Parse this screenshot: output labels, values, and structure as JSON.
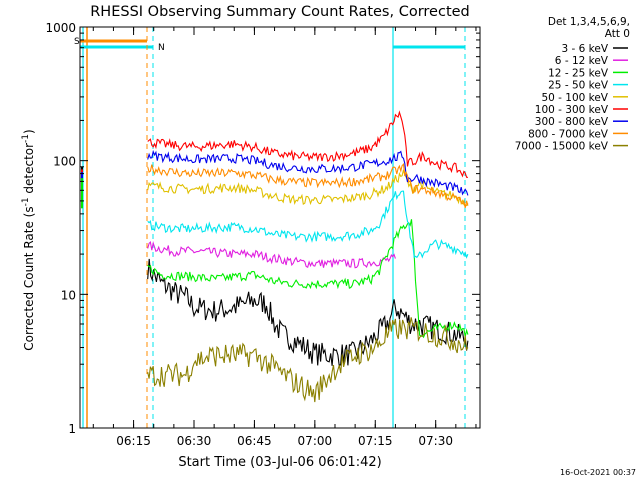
{
  "chart_data": {
    "type": "line",
    "title": "RHESSI Observing Summary Count Rates, Corrected",
    "xlabel": "Start Time (03-Jul-06 06:01:42)",
    "ylabel_main": "Corrected Count Rate (s",
    "ylabel_sup1": "-1",
    "ylabel_mid": " detector",
    "ylabel_sup2": "-1",
    "ylabel_end": ")",
    "y_scale": "log",
    "ylim": [
      1,
      1000
    ],
    "xlim": [
      "06:01:42",
      "07:41:00"
    ],
    "y_ticks": [
      "1",
      "10",
      "100",
      "1000"
    ],
    "x_ticks": [
      "06:15",
      "06:30",
      "06:45",
      "07:00",
      "07:15",
      "07:30"
    ],
    "legend_header": [
      "Det 1,3,4,5,6,9,",
      "Att 0"
    ],
    "legend_placement": "outside-right",
    "footer_date": "16-Oct-2021 00:37",
    "markers": [
      {
        "label": "S",
        "color": "#ff8c00"
      },
      {
        "label": "N",
        "color": "#00e5ee"
      }
    ],
    "series": [
      {
        "name": "3 - 6 keV",
        "color": "#000000",
        "x": [
          "06:18:30",
          "06:20",
          "06:22",
          "06:24",
          "06:26",
          "06:28",
          "06:30",
          "06:35",
          "06:40",
          "06:45",
          "06:48",
          "06:50",
          "06:52",
          "06:55",
          "07:00",
          "07:05",
          "07:10",
          "07:14",
          "07:18",
          "07:20",
          "07:22",
          "07:24",
          "07:26",
          "07:30",
          "07:35",
          "07:38"
        ],
        "y": [
          16,
          14,
          12,
          11,
          10,
          9.5,
          8,
          7.5,
          8,
          9,
          8.5,
          6,
          5,
          4.5,
          3.6,
          3.5,
          3.6,
          4.5,
          6,
          8,
          7,
          6,
          6,
          5.5,
          5,
          4.5
        ]
      },
      {
        "name": "6 - 12 keV",
        "color": "#e020e0",
        "x": [
          "06:18:30",
          "06:25",
          "06:30",
          "06:40",
          "06:45",
          "06:50",
          "06:55",
          "07:00",
          "07:05",
          "07:10",
          "07:15",
          "07:18",
          "07:20"
        ],
        "y": [
          23,
          21,
          21,
          20,
          20,
          18.5,
          17.5,
          17,
          17,
          17,
          17.5,
          18,
          18.5
        ]
      },
      {
        "name": "12 - 25 keV",
        "color": "#00ee00",
        "x": [
          "06:18:30",
          "06:22",
          "06:30",
          "06:35",
          "06:40",
          "06:45",
          "06:50",
          "06:55",
          "07:00",
          "07:05",
          "07:10",
          "07:14",
          "07:16",
          "07:18",
          "07:20",
          "07:22",
          "07:24",
          "07:26",
          "07:30",
          "07:35",
          "07:38"
        ],
        "y": [
          16,
          14,
          13.5,
          13,
          13.5,
          14,
          12.5,
          12,
          12,
          12,
          12,
          13,
          15,
          20,
          26,
          32,
          36,
          5,
          5.5,
          6,
          5
        ]
      },
      {
        "name": "25 - 50 keV",
        "color": "#00e5ee",
        "x": [
          "06:18:30",
          "06:25",
          "06:30",
          "06:40",
          "06:45",
          "06:50",
          "06:55",
          "07:00",
          "07:05",
          "07:10",
          "07:14",
          "07:16",
          "07:18",
          "07:20",
          "07:22",
          "07:23",
          "07:25",
          "07:28",
          "07:30",
          "07:35",
          "07:38"
        ],
        "y": [
          33,
          31,
          31,
          32,
          31,
          28,
          27,
          27,
          27,
          28,
          30,
          34,
          44,
          55,
          62,
          35,
          18,
          22,
          24,
          22,
          20
        ]
      },
      {
        "name": "50 - 100 keV",
        "color": "#e0c000",
        "x": [
          "06:18:30",
          "06:25",
          "06:30",
          "06:40",
          "06:45",
          "06:50",
          "06:55",
          "07:00",
          "07:05",
          "07:10",
          "07:14",
          "07:18",
          "07:20",
          "07:22",
          "07:24",
          "07:26",
          "07:28",
          "07:30",
          "07:35",
          "07:38"
        ],
        "y": [
          65,
          62,
          61,
          63,
          60,
          54,
          51,
          51,
          51,
          53,
          56,
          63,
          72,
          80,
          60,
          68,
          62,
          58,
          54,
          48
        ]
      },
      {
        "name": "100 - 300 keV",
        "color": "#ff0000",
        "x": [
          "06:18:30",
          "06:25",
          "06:30",
          "06:35",
          "06:40",
          "06:45",
          "06:50",
          "06:55",
          "07:00",
          "07:05",
          "07:10",
          "07:14",
          "07:17",
          "07:19",
          "07:20",
          "07:21",
          "07:22",
          "07:23",
          "07:25",
          "07:27",
          "07:30",
          "07:35",
          "07:38"
        ],
        "y": [
          138,
          130,
          127,
          130,
          133,
          126,
          113,
          108,
          106,
          108,
          114,
          125,
          150,
          185,
          210,
          225,
          180,
          95,
          100,
          110,
          95,
          88,
          75
        ]
      },
      {
        "name": "300 - 800 keV",
        "color": "#0000ee",
        "x": [
          "06:18:30",
          "06:25",
          "06:30",
          "06:40",
          "06:45",
          "06:50",
          "06:55",
          "07:00",
          "07:05",
          "07:10",
          "07:14",
          "07:18",
          "07:20",
          "07:22",
          "07:23",
          "07:25",
          "07:28",
          "07:30",
          "07:35",
          "07:38"
        ],
        "y": [
          110,
          105,
          102,
          104,
          100,
          92,
          88,
          87,
          87,
          90,
          94,
          100,
          105,
          110,
          72,
          75,
          70,
          68,
          62,
          55
        ]
      },
      {
        "name": "800 - 7000 keV",
        "color": "#ff8c00",
        "x": [
          "06:18:30",
          "06:25",
          "06:30",
          "06:40",
          "06:45",
          "06:50",
          "06:55",
          "07:00",
          "07:05",
          "07:10",
          "07:14",
          "07:18",
          "07:20",
          "07:22",
          "07:24",
          "07:28",
          "07:30",
          "07:35",
          "07:38"
        ],
        "y": [
          88,
          82,
          80,
          81,
          78,
          72,
          69,
          68,
          68,
          70,
          73,
          78,
          84,
          88,
          62,
          60,
          58,
          52,
          46
        ]
      },
      {
        "name": "7000 - 15000 keV",
        "color": "#8b8000",
        "x": [
          "06:18:30",
          "06:25",
          "06:28",
          "06:30",
          "06:35",
          "06:40",
          "06:45",
          "06:50",
          "06:55",
          "07:00",
          "07:05",
          "07:10",
          "07:15",
          "07:18",
          "07:20",
          "07:25",
          "07:30",
          "07:35",
          "07:38"
        ],
        "y": [
          2.5,
          2.5,
          2.5,
          3.2,
          3.5,
          3.5,
          3.5,
          2.8,
          2.2,
          1.8,
          2.8,
          3.5,
          4,
          5,
          5.5,
          5.5,
          5,
          4.5,
          4
        ]
      }
    ]
  }
}
